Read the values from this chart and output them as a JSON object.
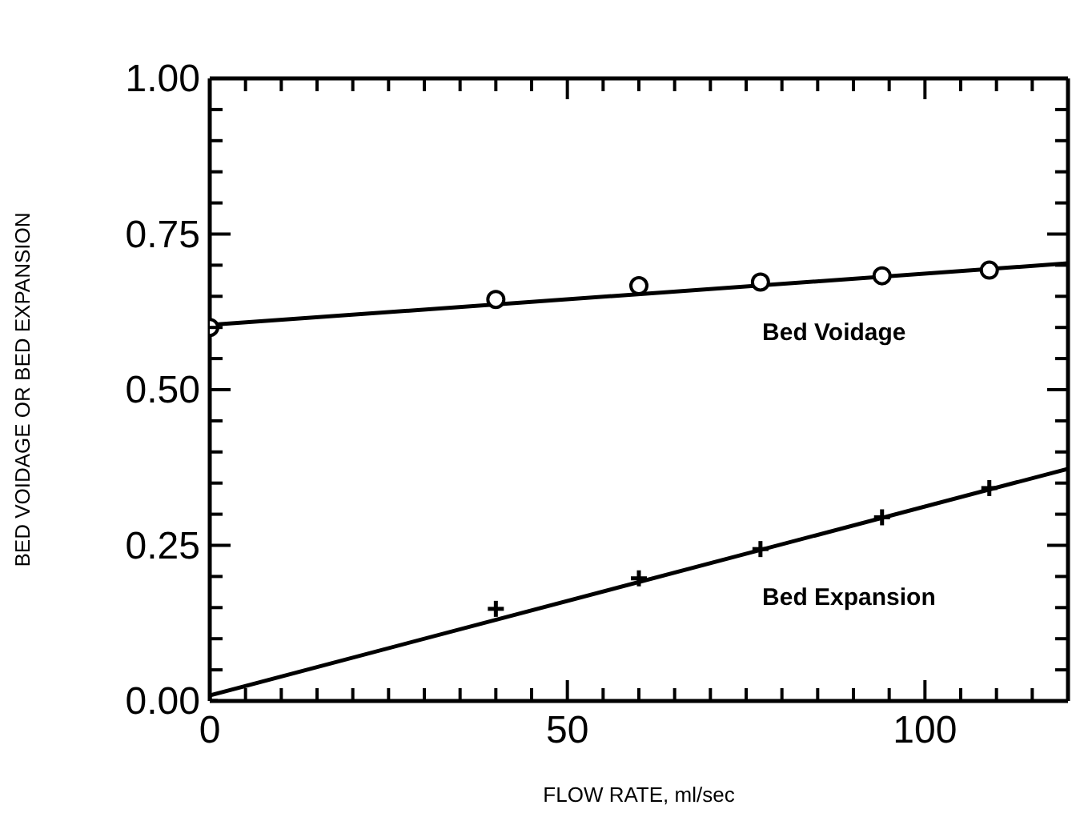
{
  "chart_data": {
    "type": "scatter",
    "xlabel": "FLOW RATE, ml/sec",
    "ylabel": "BED VOIDAGE OR BED EXPANSION",
    "xlim": [
      0,
      120
    ],
    "ylim": [
      0,
      1
    ],
    "xticks": [
      {
        "value": 0,
        "label": "0"
      },
      {
        "value": 5,
        "label": null
      },
      {
        "value": 10,
        "label": null
      },
      {
        "value": 15,
        "label": null
      },
      {
        "value": 20,
        "label": null
      },
      {
        "value": 25,
        "label": null
      },
      {
        "value": 30,
        "label": null
      },
      {
        "value": 35,
        "label": null
      },
      {
        "value": 40,
        "label": null
      },
      {
        "value": 45,
        "label": null
      },
      {
        "value": 50,
        "label": "50"
      },
      {
        "value": 55,
        "label": null
      },
      {
        "value": 60,
        "label": null
      },
      {
        "value": 65,
        "label": null
      },
      {
        "value": 70,
        "label": null
      },
      {
        "value": 75,
        "label": null
      },
      {
        "value": 80,
        "label": null
      },
      {
        "value": 85,
        "label": null
      },
      {
        "value": 90,
        "label": null
      },
      {
        "value": 95,
        "label": null
      },
      {
        "value": 100,
        "label": "100"
      },
      {
        "value": 105,
        "label": null
      },
      {
        "value": 110,
        "label": null
      },
      {
        "value": 115,
        "label": null
      },
      {
        "value": 120,
        "label": null
      }
    ],
    "yticks": [
      {
        "value": 0,
        "label": "0.00"
      },
      {
        "value": 0.05,
        "label": null
      },
      {
        "value": 0.1,
        "label": null
      },
      {
        "value": 0.15,
        "label": null
      },
      {
        "value": 0.2,
        "label": null
      },
      {
        "value": 0.25,
        "label": "0.25"
      },
      {
        "value": 0.3,
        "label": null
      },
      {
        "value": 0.35,
        "label": null
      },
      {
        "value": 0.4,
        "label": null
      },
      {
        "value": 0.45,
        "label": null
      },
      {
        "value": 0.5,
        "label": "0.50"
      },
      {
        "value": 0.55,
        "label": null
      },
      {
        "value": 0.6,
        "label": null
      },
      {
        "value": 0.65,
        "label": null
      },
      {
        "value": 0.7,
        "label": null
      },
      {
        "value": 0.75,
        "label": "0.75"
      },
      {
        "value": 0.8,
        "label": null
      },
      {
        "value": 0.85,
        "label": null
      },
      {
        "value": 0.9,
        "label": null
      },
      {
        "value": 0.95,
        "label": null
      },
      {
        "value": 1,
        "label": "1.00"
      }
    ],
    "series": [
      {
        "type": "scatter",
        "marker": "circle",
        "color": "#000000",
        "x": [
          0,
          40,
          60,
          77,
          94,
          109
        ],
        "values": [
          0.6,
          0.645,
          0.667,
          0.673,
          0.683,
          0.692
        ]
      },
      {
        "type": "scatter",
        "marker": "cross",
        "color": "#000000",
        "x": [
          0,
          40,
          60,
          77,
          94,
          109
        ],
        "values": [
          0.0,
          0.148,
          0.197,
          0.244,
          0.295,
          0.342
        ]
      },
      {
        "type": "line",
        "name": "Bed Voidage",
        "marker": "none",
        "line_style": "solid",
        "color": "#000000",
        "x": [
          0,
          120
        ],
        "values": [
          0.604,
          0.703
        ]
      },
      {
        "type": "line",
        "name": "Bed Expansion",
        "marker": "none",
        "line_style": "solid",
        "color": "#000000",
        "x": [
          0,
          120
        ],
        "values": [
          0.009,
          0.373
        ]
      }
    ]
  }
}
